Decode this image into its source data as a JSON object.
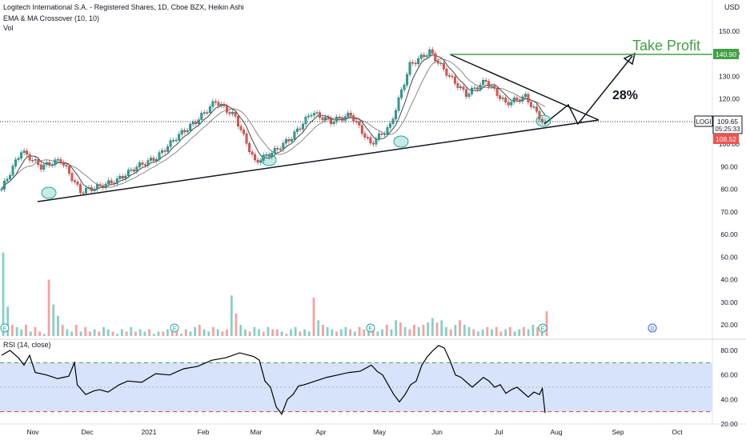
{
  "header": {
    "title": "Logitech International S.A. - Registered Shares, 1D, Cboe BZX, Heikin Ashi",
    "indicator": "EMA & MA Crossover (10, 10)",
    "volume_label": "Vol",
    "currency": "USD"
  },
  "price_pane": {
    "y_ticks": [
      "150.00",
      "140.00",
      "130.00",
      "120.00",
      "110.00",
      "100.00",
      "90.00",
      "80.00",
      "70.00",
      "60.00",
      "50.00",
      "40.00",
      "30.00",
      "20.00"
    ],
    "ylim": [
      15,
      155
    ],
    "take_profit_label": "Take Profit",
    "take_profit_price": "140.90",
    "gain_label": "28%",
    "symbol": "LOGI",
    "last_price": "109.65",
    "countdown": "05:25:33",
    "low_marker": "108.52",
    "colors": {
      "up": "#26a69a",
      "down": "#ef5350",
      "take_profit": "#43a047",
      "ma1": "#555555",
      "ma2": "#999999"
    },
    "earnings_marker": "E",
    "dividend_marker": "D"
  },
  "rsi_pane": {
    "label": "RSI (14, close)",
    "y_ticks": [
      "80.00",
      "60.00",
      "40.00",
      "20.00"
    ],
    "ylim": [
      20,
      85
    ],
    "band": [
      30,
      70
    ],
    "colors": {
      "line": "#000000",
      "band": "#d6e3fb",
      "upper": "#43a047",
      "lower": "#e53935"
    }
  },
  "x_axis": {
    "labels": [
      "Nov",
      "Dec",
      "2021",
      "Feb",
      "Mar",
      "Apr",
      "May",
      "Jun",
      "Jul",
      "Aug",
      "Sep",
      "Oct"
    ]
  },
  "chart_data": {
    "type": "line",
    "title": "Logitech International S.A. - Registered Shares, 1D, Cboe BZX, Heikin Ashi",
    "price_path": [
      {
        "x": "Oct 21",
        "y": 80
      },
      {
        "x": "Oct 24",
        "y": 97
      },
      {
        "x": "Oct 30",
        "y": 90
      },
      {
        "x": "Nov 4",
        "y": 93
      },
      {
        "x": "Nov 6",
        "y": 79
      },
      {
        "x": "Nov 10",
        "y": 81
      },
      {
        "x": "Nov 18",
        "y": 84
      },
      {
        "x": "Dec 1",
        "y": 90
      },
      {
        "x": "Dec 20",
        "y": 94
      },
      {
        "x": "Jan 10",
        "y": 103
      },
      {
        "x": "Jan 25",
        "y": 110
      },
      {
        "x": "Feb 8",
        "y": 119
      },
      {
        "x": "Feb 22",
        "y": 112
      },
      {
        "x": "Mar 4",
        "y": 92
      },
      {
        "x": "Mar 15",
        "y": 97
      },
      {
        "x": "Apr 1",
        "y": 103
      },
      {
        "x": "Apr 20",
        "y": 114
      },
      {
        "x": "Apr 28",
        "y": 110
      },
      {
        "x": "May 5",
        "y": 113
      },
      {
        "x": "May 12",
        "y": 100
      },
      {
        "x": "May 22",
        "y": 108
      },
      {
        "x": "Jun 4",
        "y": 135
      },
      {
        "x": "Jun 9",
        "y": 141
      },
      {
        "x": "Jun 16",
        "y": 130
      },
      {
        "x": "Jun 26",
        "y": 122
      },
      {
        "x": "Jul 8",
        "y": 128
      },
      {
        "x": "Jul 20",
        "y": 118
      },
      {
        "x": "Jul 27",
        "y": 121
      },
      {
        "x": "Jul 29",
        "y": 108.5
      }
    ],
    "volume_millions": [
      52,
      28,
      20,
      19,
      18,
      20,
      17,
      19,
      17,
      16,
      40,
      29,
      24,
      20,
      18,
      17,
      20,
      17,
      19,
      17,
      18,
      17,
      19,
      18,
      17,
      16,
      18,
      17,
      19,
      17,
      18,
      17,
      18,
      16,
      17,
      17,
      18,
      19,
      17,
      16,
      18,
      17,
      19,
      20,
      18,
      17,
      19,
      18,
      17,
      18,
      33,
      25,
      20,
      18,
      17,
      19,
      18,
      17,
      19,
      18,
      18,
      17,
      16,
      18,
      19,
      17,
      18,
      17,
      32,
      22,
      20,
      19,
      18,
      17,
      18,
      19,
      18,
      17,
      19,
      18,
      18,
      19,
      17,
      18,
      20,
      18,
      22,
      21,
      19,
      18,
      20,
      19,
      20,
      21,
      23,
      21,
      22,
      19,
      18,
      20,
      22,
      20,
      19,
      18,
      17,
      18,
      19,
      18,
      19,
      17,
      18,
      19,
      17,
      18,
      19,
      18,
      20,
      19,
      18,
      26
    ],
    "rsi": [
      [
        0,
        76
      ],
      [
        3,
        80
      ],
      [
        6,
        74
      ],
      [
        8,
        68
      ],
      [
        10,
        76
      ],
      [
        12,
        62
      ],
      [
        16,
        60
      ],
      [
        20,
        57
      ],
      [
        22,
        58
      ],
      [
        24,
        59
      ],
      [
        26,
        70
      ],
      [
        27,
        52
      ],
      [
        30,
        44
      ],
      [
        33,
        47
      ],
      [
        35,
        48
      ],
      [
        38,
        46
      ],
      [
        42,
        52
      ],
      [
        45,
        55
      ],
      [
        50,
        54
      ],
      [
        55,
        61
      ],
      [
        60,
        60
      ],
      [
        65,
        65
      ],
      [
        70,
        67
      ],
      [
        75,
        72
      ],
      [
        80,
        74
      ],
      [
        85,
        78
      ],
      [
        90,
        75
      ],
      [
        92,
        72
      ],
      [
        94,
        55
      ],
      [
        96,
        50
      ],
      [
        98,
        34
      ],
      [
        100,
        28
      ],
      [
        102,
        40
      ],
      [
        104,
        44
      ],
      [
        106,
        51
      ],
      [
        108,
        52
      ],
      [
        112,
        55
      ],
      [
        116,
        58
      ],
      [
        120,
        60
      ],
      [
        124,
        62
      ],
      [
        128,
        63
      ],
      [
        132,
        68
      ],
      [
        134,
        63
      ],
      [
        136,
        60
      ],
      [
        138,
        52
      ],
      [
        140,
        44
      ],
      [
        142,
        38
      ],
      [
        144,
        44
      ],
      [
        146,
        52
      ],
      [
        148,
        55
      ],
      [
        150,
        68
      ],
      [
        152,
        75
      ],
      [
        154,
        80
      ],
      [
        156,
        84
      ],
      [
        158,
        82
      ],
      [
        160,
        72
      ],
      [
        162,
        60
      ],
      [
        164,
        58
      ],
      [
        166,
        54
      ],
      [
        168,
        50
      ],
      [
        170,
        54
      ],
      [
        172,
        58
      ],
      [
        174,
        55
      ],
      [
        176,
        50
      ],
      [
        178,
        52
      ],
      [
        180,
        45
      ],
      [
        182,
        48
      ],
      [
        184,
        50
      ],
      [
        186,
        46
      ],
      [
        188,
        42
      ],
      [
        190,
        46
      ],
      [
        192,
        44
      ],
      [
        193,
        49
      ],
      [
        194,
        29
      ]
    ],
    "take_profit": 140.9,
    "last_price": 109.65,
    "ylim": [
      15,
      155
    ]
  }
}
